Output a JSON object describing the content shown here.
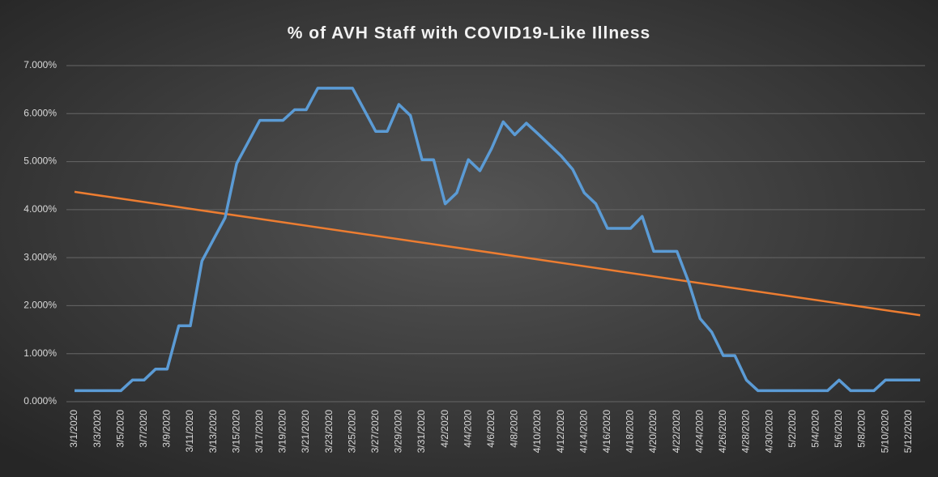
{
  "chart_data": {
    "type": "line",
    "title": "% of AVH Staff with COVID19-Like  Illness",
    "categories": [
      "3/1/2020",
      null,
      "3/3/2020",
      null,
      "3/5/2020",
      null,
      "3/7/2020",
      null,
      "3/9/2020",
      null,
      "3/11/2020",
      null,
      "3/13/2020",
      null,
      "3/15/2020",
      null,
      "3/17/2020",
      null,
      "3/19/2020",
      null,
      "3/21/2020",
      null,
      "3/23/2020",
      null,
      "3/25/2020",
      null,
      "3/27/2020",
      null,
      "3/29/2020",
      null,
      "3/31/2020",
      null,
      "4/2/2020",
      null,
      "4/4/2020",
      null,
      "4/6/2020",
      null,
      "4/8/2020",
      null,
      "4/10/2020",
      null,
      "4/12/2020",
      null,
      "4/14/2020",
      null,
      "4/16/2020",
      null,
      "4/18/2020",
      null,
      "4/20/2020",
      null,
      "4/22/2020",
      null,
      "4/24/2020",
      null,
      "4/26/2020",
      null,
      "4/28/2020",
      null,
      "4/30/2020",
      null,
      "5/2/2020",
      null,
      "5/4/2020",
      null,
      "5/6/2020",
      null,
      "5/8/2020",
      null,
      "5/10/2020",
      null,
      "5/12/2020",
      null
    ],
    "series": [
      {
        "color": "#5b9bd5",
        "values": [
          0.23,
          0.23,
          0.23,
          0.23,
          0.23,
          0.45,
          0.45,
          0.68,
          0.68,
          1.58,
          1.58,
          2.93,
          3.38,
          3.83,
          4.96,
          5.41,
          5.86,
          5.86,
          5.86,
          6.08,
          6.08,
          6.53,
          6.53,
          6.53,
          6.53,
          6.08,
          5.63,
          5.63,
          6.19,
          5.96,
          5.04,
          5.04,
          4.12,
          4.35,
          5.04,
          4.81,
          5.27,
          5.83,
          5.56,
          5.8,
          5.58,
          5.35,
          5.12,
          4.84,
          4.35,
          4.12,
          3.61,
          3.61,
          3.61,
          3.86,
          3.13,
          3.13,
          3.13,
          2.5,
          1.73,
          1.45,
          0.96,
          0.96,
          0.45,
          0.23,
          0.23,
          0.23,
          0.23,
          0.23,
          0.23,
          0.23,
          0.45,
          0.23,
          0.23,
          0.23,
          0.45,
          0.45,
          0.45,
          0.45
        ]
      }
    ],
    "trendline": {
      "color": "#ed7d31",
      "start": 4.37,
      "end": 1.8
    },
    "ylim": [
      0,
      7
    ],
    "yticks": [
      {
        "value": 0,
        "label": "0.000%"
      },
      {
        "value": 1,
        "label": "1.000%"
      },
      {
        "value": 2,
        "label": "2.000%"
      },
      {
        "value": 3,
        "label": "3.000%"
      },
      {
        "value": 4,
        "label": "4.000%"
      },
      {
        "value": 5,
        "label": "5.000%"
      },
      {
        "value": 6,
        "label": "6.000%"
      },
      {
        "value": 7,
        "label": "7.000%"
      }
    ],
    "grid": true
  }
}
